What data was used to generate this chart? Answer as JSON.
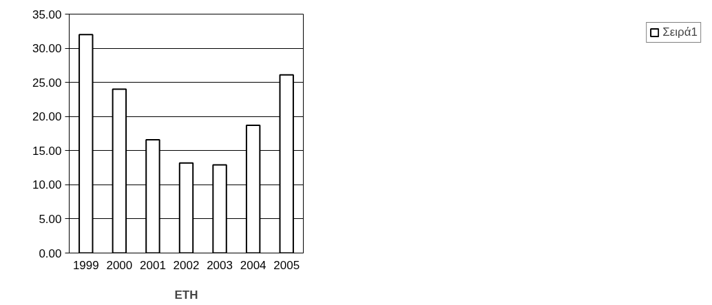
{
  "chart_data": {
    "type": "bar",
    "xlabel": "ΕΤΗ",
    "categories": [
      "1999",
      "2000",
      "2001",
      "2002",
      "2003",
      "2004",
      "2005"
    ],
    "series": [
      {
        "name": "Σειρά1",
        "color": "#ffffff",
        "values": [
          32.0,
          24.0,
          16.6,
          13.2,
          12.9,
          18.7,
          26.1
        ]
      }
    ],
    "ylim": [
      0,
      35
    ],
    "yticks": [
      {
        "value": 0,
        "label": "0.00"
      },
      {
        "value": 5,
        "label": "5.00"
      },
      {
        "value": 10,
        "label": "10.00"
      },
      {
        "value": 15,
        "label": "15.00"
      },
      {
        "value": 20,
        "label": "20.00"
      },
      {
        "value": 25,
        "label": "25.00"
      },
      {
        "value": 30,
        "label": "30.00"
      },
      {
        "value": 35,
        "label": "35.00"
      }
    ],
    "grid": "y",
    "legend": "right"
  }
}
